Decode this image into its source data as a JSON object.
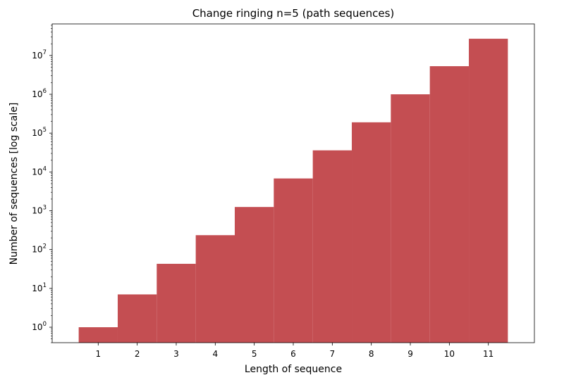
{
  "chart_data": {
    "type": "bar",
    "title": "Change ringing n=5 (path sequences)",
    "xlabel": "Length of sequence",
    "ylabel": "Number of sequences [log scale]",
    "yscale": "log",
    "ylim": [
      0.4,
      65000000
    ],
    "categories": [
      "1",
      "2",
      "3",
      "4",
      "5",
      "6",
      "7",
      "8",
      "9",
      "10",
      "11"
    ],
    "values": [
      1,
      7,
      43,
      235,
      1250,
      6800,
      36000,
      190000,
      1000000,
      5300000,
      27000000
    ],
    "ytick_bases": [
      "10",
      "10",
      "10",
      "10",
      "10",
      "10",
      "10",
      "10"
    ],
    "ytick_exponents": [
      "0",
      "1",
      "2",
      "3",
      "4",
      "5",
      "6",
      "7"
    ],
    "bar_color": "#c44e52",
    "grid": false,
    "legend": false
  }
}
